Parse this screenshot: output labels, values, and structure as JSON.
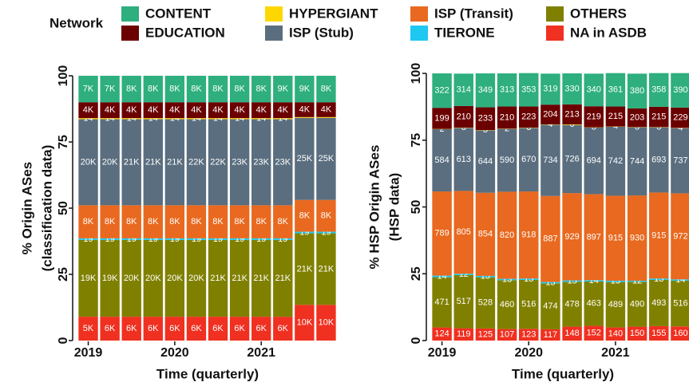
{
  "chart_data": [
    {
      "type": "bar",
      "stacked": true,
      "legend_title": "Network",
      "ylabel": [
        "% Origin ASes",
        "(classification data)"
      ],
      "xlabel": "Time (quarterly)",
      "categories": [
        "2019",
        null,
        null,
        null,
        "2020",
        null,
        null,
        null,
        "2021",
        null,
        null,
        null
      ],
      "ylim": [
        0,
        100
      ],
      "yticks": [
        0,
        25,
        50,
        75,
        100
      ],
      "series": [
        {
          "name": "CONTENT",
          "color": "#2eaf7d",
          "values": [
            10,
            10,
            10,
            10,
            10,
            10,
            10,
            10,
            10,
            10,
            10,
            10
          ],
          "value_labels": [
            "7K",
            "7K",
            "8K",
            "8K",
            "8K",
            "8K",
            "8K",
            "8K",
            "8K",
            "9K",
            "9K",
            "8K"
          ]
        },
        {
          "name": "EDUCATION",
          "color": "#6b0000",
          "values": [
            6,
            6,
            6,
            6,
            6,
            6,
            6,
            6,
            6,
            6,
            5.6,
            5.6
          ],
          "value_labels": [
            "4K",
            "4K",
            "4K",
            "4K",
            "4K",
            "4K",
            "4K",
            "4K",
            "4K",
            "4K",
            "4K",
            "4K"
          ]
        },
        {
          "name": "HYPERGIANT",
          "color": "#ffd700",
          "values": [
            0.4,
            0.4,
            0.4,
            0.4,
            0.4,
            0.4,
            0.4,
            0.4,
            0.4,
            0.4,
            0.3,
            0.3
          ],
          "value_labels": [
            "14",
            "14",
            "14",
            "14",
            "14",
            "14",
            "14",
            "14",
            "14",
            "14",
            null,
            null
          ]
        },
        {
          "name": "ISP (Stub)",
          "color": "#5a6e7f",
          "values": [
            32.5,
            32.5,
            32.5,
            32.5,
            32.5,
            32.5,
            32.5,
            32.5,
            32.5,
            32.5,
            31,
            31
          ],
          "value_labels": [
            "20K",
            "20K",
            "21K",
            "21K",
            "21K",
            "22K",
            "22K",
            "23K",
            "23K",
            "23K",
            "25K",
            "25K"
          ]
        },
        {
          "name": "ISP (Transit)",
          "color": "#e8691f",
          "values": [
            12.5,
            12.5,
            12.5,
            12.5,
            12.5,
            12.5,
            12.5,
            12.5,
            12.5,
            12.5,
            12,
            12
          ],
          "value_labels": [
            "8K",
            "8K",
            "8K",
            "8K",
            "8K",
            "8K",
            "8K",
            "8K",
            "8K",
            "8K",
            "8K",
            "8K"
          ]
        },
        {
          "name": "TIERONE",
          "color": "#1ec8f0",
          "values": [
            0.6,
            0.6,
            0.6,
            0.6,
            0.6,
            0.6,
            0.6,
            0.6,
            0.6,
            0.6,
            0.6,
            0.6
          ],
          "value_labels": [
            "19",
            "19",
            "19",
            "19",
            "19",
            "19",
            "19",
            "19",
            "19",
            "19",
            "19",
            "19"
          ]
        },
        {
          "name": "OTHERS",
          "color": "#808000",
          "values": [
            29,
            29,
            29,
            29,
            29,
            29,
            29,
            29,
            29,
            29,
            27,
            27
          ],
          "value_labels": [
            "19K",
            "19K",
            "20K",
            "20K",
            "20K",
            "20K",
            "21K",
            "21K",
            "21K",
            "21K",
            "21K",
            "21K"
          ]
        },
        {
          "name": "NA in ASDB",
          "color": "#f03020",
          "values": [
            9,
            9,
            9,
            9,
            9,
            9,
            9,
            9,
            9,
            9,
            13.5,
            13.5
          ],
          "value_labels": [
            "5K",
            "6K",
            "6K",
            "6K",
            "6K",
            "6K",
            "6K",
            "6K",
            "6K",
            "6K",
            "10K",
            "10K"
          ]
        }
      ]
    },
    {
      "type": "bar",
      "stacked": true,
      "ylabel": [
        "% HSP Origin ASes",
        "(HSP data)"
      ],
      "xlabel": "Time (quarterly)",
      "categories": [
        "2019",
        null,
        null,
        null,
        "2020",
        null,
        null,
        null,
        "2021",
        null,
        null,
        null
      ],
      "ylim": [
        0,
        100
      ],
      "yticks": [
        0,
        25,
        50,
        75,
        100
      ],
      "series": [
        {
          "name": "CONTENT",
          "color": "#2eaf7d",
          "values": [
            12.9,
            12.1,
            12.7,
            12.4,
            12.5,
            11.6,
            11.6,
            12.2,
            12.5,
            13.0,
            12.6,
            12.9
          ],
          "value_labels": [
            "322",
            "314",
            "349",
            "313",
            "353",
            "319",
            "330",
            "340",
            "361",
            "380",
            "358",
            "390"
          ]
        },
        {
          "name": "EDUCATION",
          "color": "#6b0000",
          "values": [
            7.9,
            8.1,
            8.5,
            8.3,
            7.9,
            7.4,
            7.5,
            7.9,
            7.5,
            7.0,
            7.6,
            7.6
          ],
          "value_labels": [
            "199",
            "210",
            "233",
            "210",
            "223",
            "204",
            "213",
            "219",
            "215",
            "203",
            "215",
            "229"
          ]
        },
        {
          "name": "HYPERGIANT",
          "color": "#ffd700",
          "values": [
            0.1,
            0.1,
            0.1,
            0.1,
            0.1,
            0.1,
            0.2,
            0.1,
            0.1,
            0.1,
            0.1,
            0.1
          ],
          "value_labels": [
            "2",
            "3",
            "3",
            "2",
            "3",
            "4",
            "6",
            "3",
            "4",
            "3",
            "3",
            "4"
          ]
        },
        {
          "name": "ISP (Stub)",
          "color": "#5a6e7f",
          "values": [
            23.3,
            23.6,
            23.4,
            23.5,
            23.8,
            26.7,
            25.5,
            24.9,
            25.8,
            25.5,
            24.4,
            24.4
          ],
          "value_labels": [
            "584",
            "613",
            "644",
            "590",
            "670",
            "734",
            "726",
            "694",
            "742",
            "744",
            "693",
            "737"
          ]
        },
        {
          "name": "ISP (Transit)",
          "color": "#e8691f",
          "values": [
            31.5,
            31.0,
            31.1,
            32.6,
            32.6,
            32.2,
            32.7,
            32.2,
            31.8,
            31.9,
            32.2,
            32.2
          ],
          "value_labels": [
            "789",
            "805",
            "854",
            "820",
            "918",
            "887",
            "929",
            "897",
            "915",
            "930",
            "915",
            "972"
          ]
        },
        {
          "name": "TIERONE",
          "color": "#1ec8f0",
          "values": [
            0.6,
            0.5,
            0.5,
            0.5,
            0.5,
            0.5,
            0.5,
            0.5,
            0.5,
            0.4,
            0.5,
            0.5
          ],
          "value_labels": [
            "14",
            "12",
            "13",
            "13",
            "13",
            "15",
            "15",
            "14",
            "13",
            "12",
            "13",
            "14"
          ]
        },
        {
          "name": "OTHERS",
          "color": "#808000",
          "values": [
            18.8,
            19.9,
            19.2,
            18.3,
            18.3,
            17.2,
            16.8,
            16.6,
            17.0,
            16.8,
            17.3,
            17.1
          ],
          "value_labels": [
            "471",
            "517",
            "528",
            "460",
            "516",
            "474",
            "478",
            "463",
            "489",
            "490",
            "493",
            "516"
          ]
        },
        {
          "name": "NA in ASDB",
          "color": "#f03020",
          "values": [
            4.9,
            4.6,
            4.5,
            4.3,
            4.4,
            4.2,
            5.2,
            5.5,
            4.9,
            5.2,
            5.4,
            5.3
          ],
          "value_labels": [
            "124",
            "119",
            "125",
            "107",
            "123",
            "117",
            "148",
            "152",
            "140",
            "150",
            "155",
            "160"
          ]
        }
      ]
    }
  ]
}
